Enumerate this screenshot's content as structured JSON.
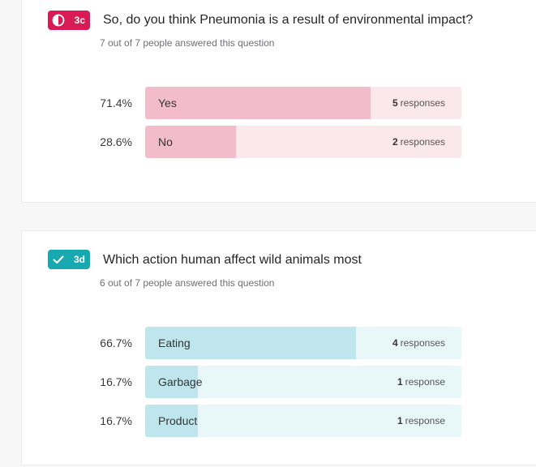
{
  "questions": [
    {
      "badge": "3c",
      "badge_color": "#d81b54",
      "badge_icon": "half-circle-icon",
      "title": "So, do you think Pneumonia is a result of environmental impact?",
      "subtitle": "7 out of 7 people answered this question",
      "track_color": "#fbe8ec",
      "fill_color": "#f2bccb",
      "options": [
        {
          "pct": "71.4%",
          "fraction": 0.714,
          "label": "Yes",
          "count": "5",
          "unit": "responses"
        },
        {
          "pct": "28.6%",
          "fraction": 0.286,
          "label": "No",
          "count": "2",
          "unit": "responses"
        }
      ]
    },
    {
      "badge": "3d",
      "badge_color": "#18a8b0",
      "badge_icon": "check-icon",
      "title": "Which action human affect wild animals most",
      "subtitle": "6 out of 7 people answered this question",
      "track_color": "#e8f7f8",
      "fill_color": "#bee6ec",
      "options": [
        {
          "pct": "66.7%",
          "fraction": 0.667,
          "label": "Eating",
          "count": "4",
          "unit": "responses"
        },
        {
          "pct": "16.7%",
          "fraction": 0.167,
          "label": "Garbage",
          "count": "1",
          "unit": "response"
        },
        {
          "pct": "16.7%",
          "fraction": 0.167,
          "label": "Product",
          "count": "1",
          "unit": "response"
        }
      ]
    }
  ]
}
